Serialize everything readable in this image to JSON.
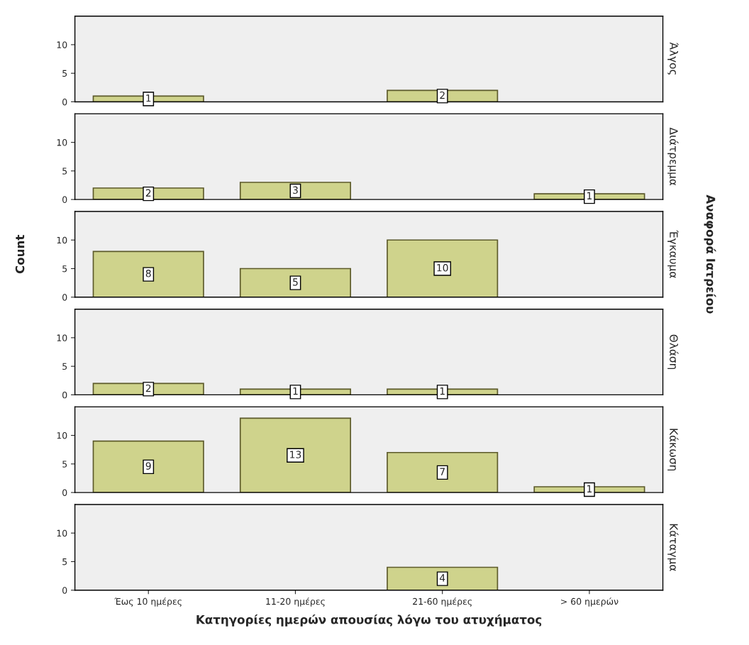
{
  "chart_data": [
    {
      "type": "bar",
      "title": "Άλγος",
      "categories": [
        null,
        null,
        null,
        null
      ],
      "values": [
        1,
        null,
        2,
        null
      ],
      "color": "#cfd38c",
      "ylim": [
        0,
        15
      ],
      "yticks": [
        0,
        5,
        10
      ],
      "data_labels": true,
      "tick_labels": "y",
      "grid": false
    },
    {
      "type": "bar",
      "title": "Διάτρεμμα",
      "categories": [
        null,
        null,
        null,
        null
      ],
      "values": [
        2,
        3,
        null,
        1
      ],
      "color": "#cfd38c",
      "ylim": [
        0,
        15
      ],
      "yticks": [
        0,
        5,
        10
      ],
      "data_labels": true,
      "tick_labels": "y",
      "grid": false
    },
    {
      "type": "bar",
      "title": "Έγκαυμα",
      "categories": [
        null,
        null,
        null,
        null
      ],
      "values": [
        8,
        5,
        10,
        null
      ],
      "color": "#cfd38c",
      "ylim": [
        0,
        15
      ],
      "yticks": [
        0,
        5,
        10
      ],
      "data_labels": true,
      "tick_labels": "y",
      "grid": false,
      "ylabel": "Count",
      "annotations": [
        "Αναφορά Ιατρείου"
      ]
    },
    {
      "type": "bar",
      "title": "Θλάση",
      "categories": [
        null,
        null,
        null,
        null
      ],
      "values": [
        2,
        1,
        1,
        null
      ],
      "color": "#cfd38c",
      "ylim": [
        0,
        15
      ],
      "yticks": [
        0,
        5,
        10
      ],
      "data_labels": true,
      "tick_labels": "y",
      "grid": false
    },
    {
      "type": "bar",
      "title": "Κάκωση",
      "categories": [
        null,
        null,
        null,
        null
      ],
      "values": [
        9,
        13,
        7,
        1
      ],
      "color": "#cfd38c",
      "ylim": [
        0,
        15
      ],
      "yticks": [
        0,
        5,
        10
      ],
      "data_labels": true,
      "tick_labels": "y",
      "grid": false
    },
    {
      "type": "bar",
      "title": "Κάταγμα",
      "categories": [
        "Έως 10 ημέρες",
        "11-20 ημέρες",
        "21-60 ημέρες",
        "> 60 ημερών"
      ],
      "values": [
        null,
        null,
        4,
        null
      ],
      "color": "#cfd38c",
      "ylim": [
        0,
        15
      ],
      "yticks": [
        0,
        5,
        10
      ],
      "data_labels": true,
      "grid": false,
      "xlabel": "Κατηγορίες ημερών απουσίας λόγω του ατυχήματος"
    }
  ]
}
